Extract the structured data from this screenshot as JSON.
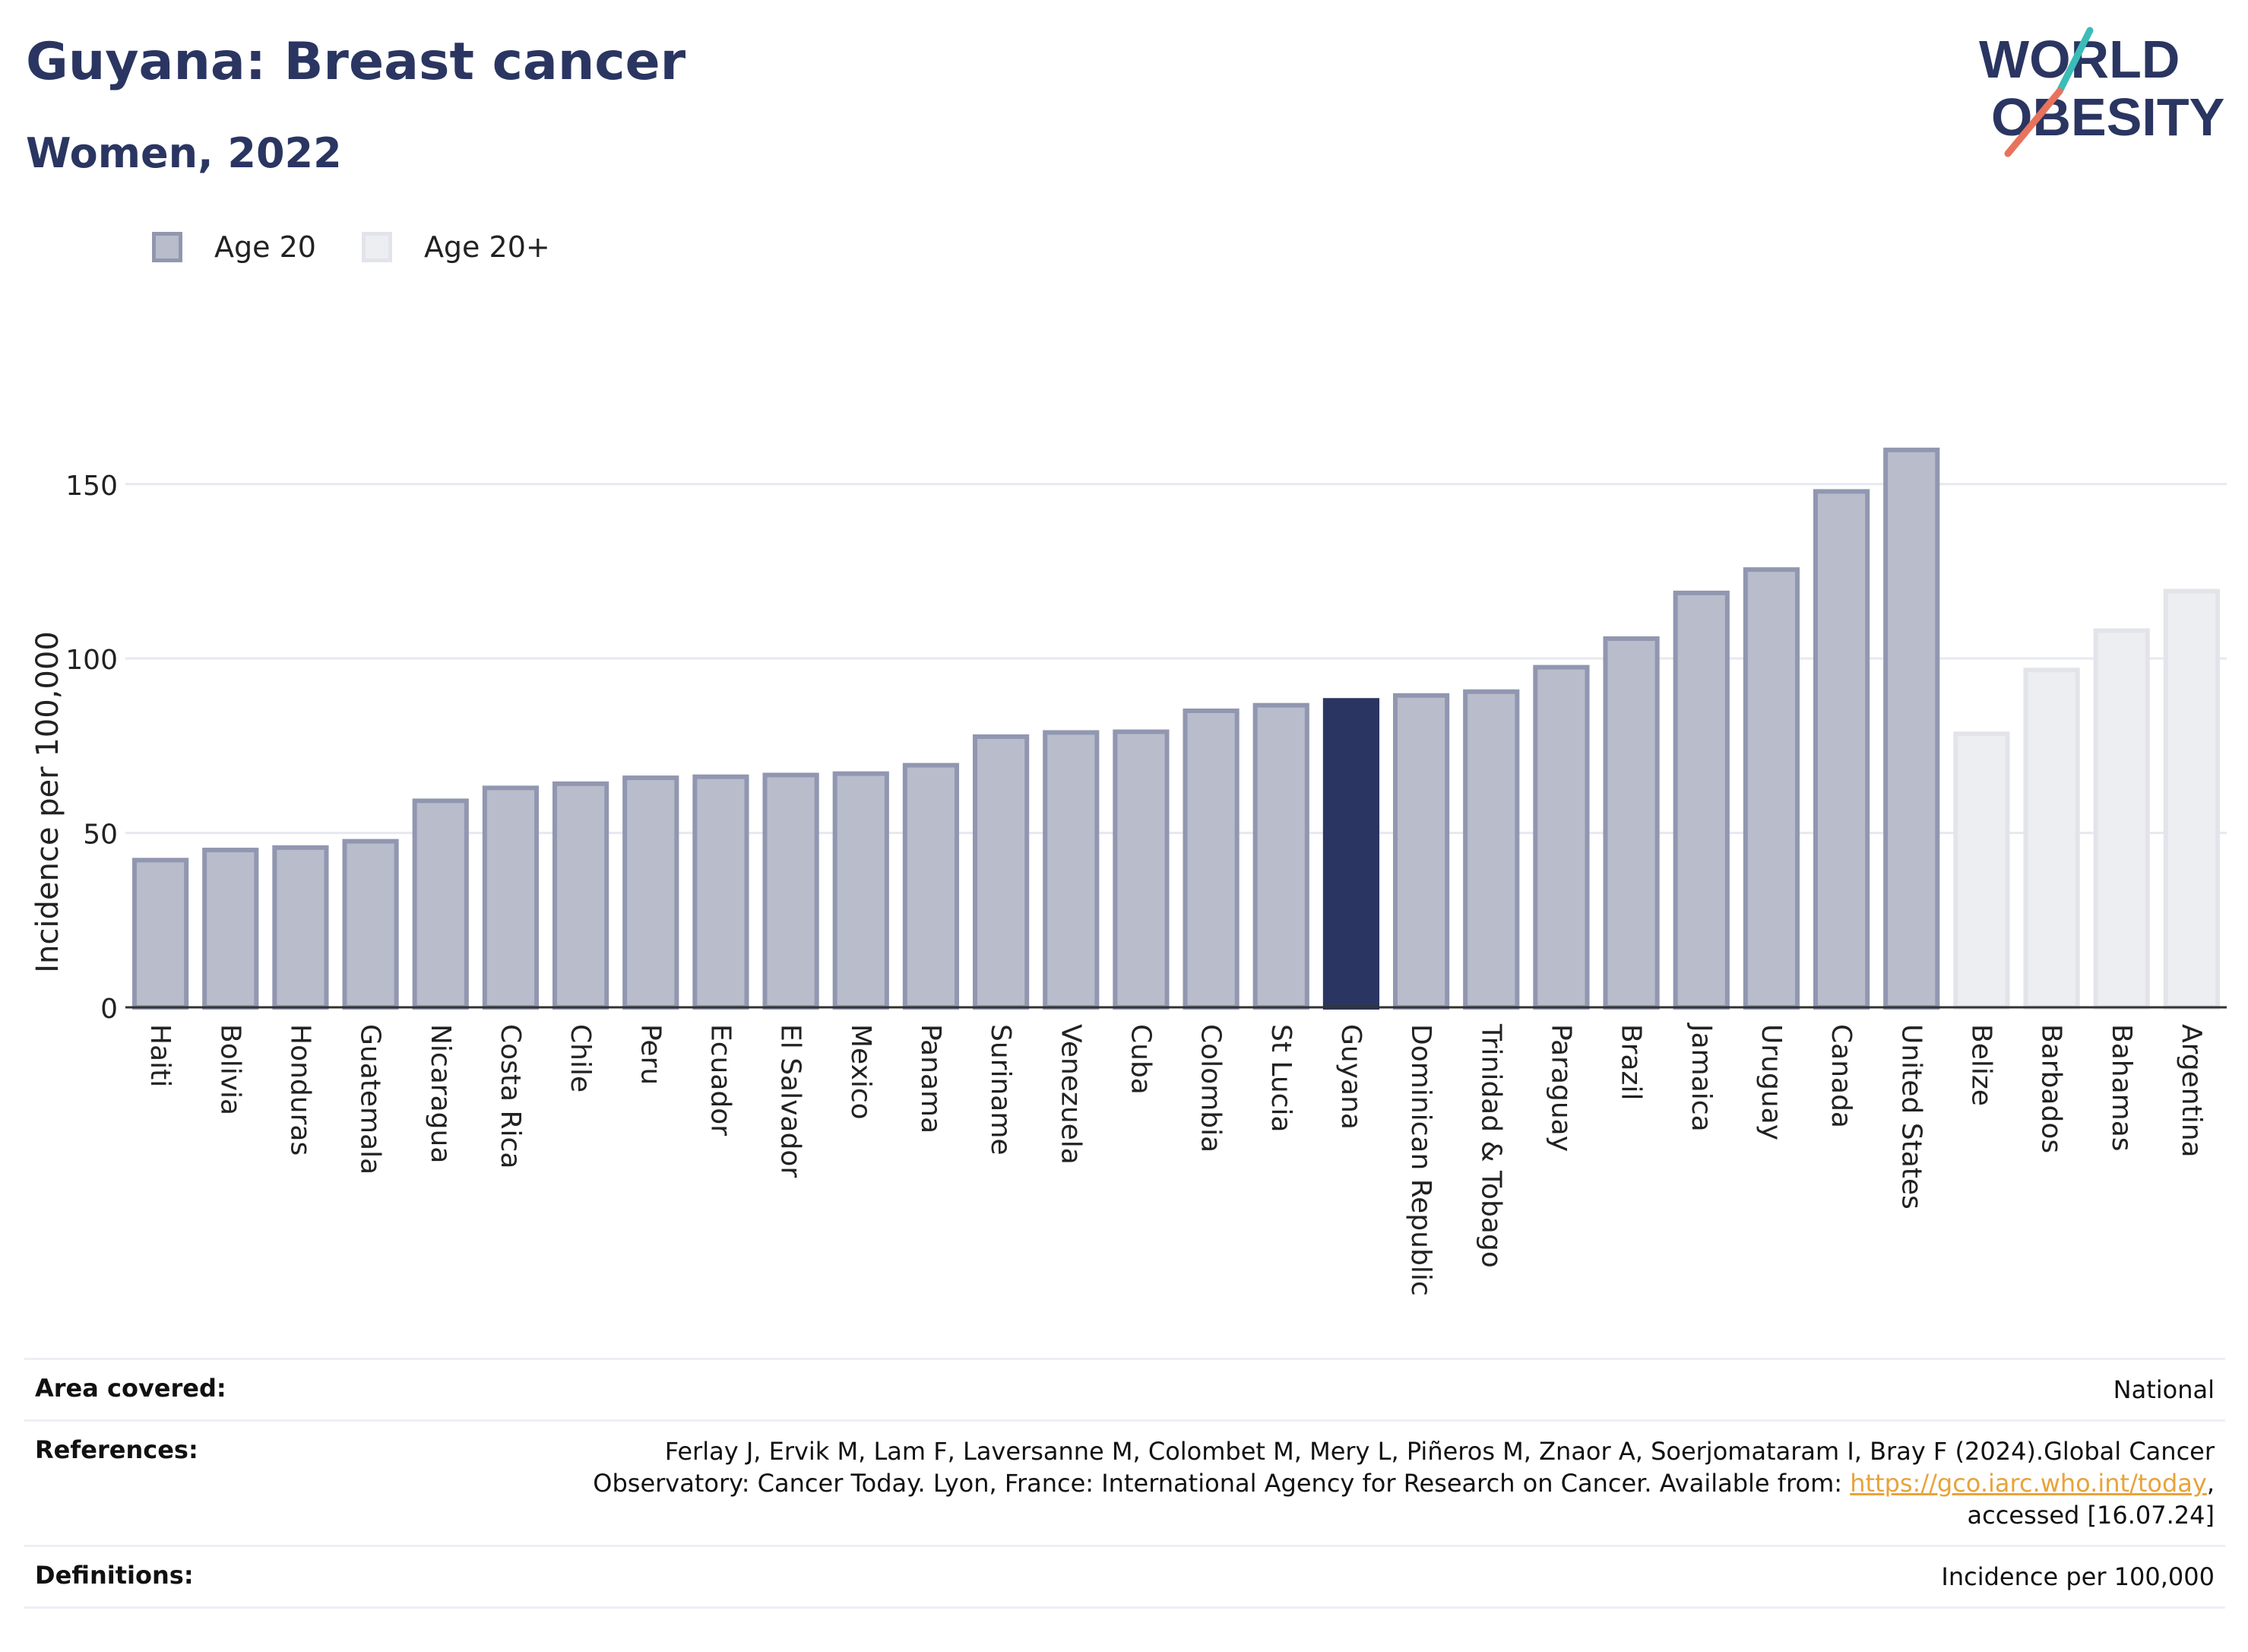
{
  "header": {
    "title": "Guyana: Breast cancer",
    "subtitle": "Women, 2022"
  },
  "logo": {
    "line1": "WORLD",
    "line2": "OBESITY"
  },
  "legend": [
    {
      "label": "Age 20",
      "color": "#b9bccb"
    },
    {
      "label": "Age 20+",
      "color": "#edeef2"
    }
  ],
  "chart_data": {
    "type": "bar",
    "ylabel": "Incidence per 100,000",
    "xlabel": "",
    "ylim": [
      0,
      170
    ],
    "yticks": [
      0,
      50,
      100,
      150
    ],
    "grid": true,
    "highlight": "Guyana",
    "colors": {
      "age20_fill": "#b9bccb",
      "age20_stroke": "#9197b0",
      "age20plus_fill": "#edeef2",
      "age20plus_stroke": "#e3e4ea",
      "highlight": "#2a3561"
    },
    "categories": [
      "Haiti",
      "Bolivia",
      "Honduras",
      "Guatemala",
      "Nicaragua",
      "Costa Rica",
      "Chile",
      "Peru",
      "Ecuador",
      "El Salvador",
      "Mexico",
      "Panama",
      "Suriname",
      "Venezuela",
      "Cuba",
      "Colombia",
      "St Lucia",
      "Guyana",
      "Dominican Republic",
      "Trinidad & Tobago",
      "Paraguay",
      "Brazil",
      "Jamaica",
      "Uruguay",
      "Canada",
      "United States",
      "Belize",
      "Barbados",
      "Bahamas",
      "Argentina"
    ],
    "values": [
      42.2,
      45.1,
      45.8,
      47.6,
      59.2,
      62.9,
      64.1,
      65.8,
      66.1,
      66.6,
      67.0,
      69.4,
      77.6,
      78.8,
      79.0,
      85.0,
      86.6,
      88.0,
      89.4,
      90.5,
      97.5,
      105.7,
      118.8,
      125.5,
      147.9,
      159.8,
      78.4,
      96.7,
      108.0,
      119.3
    ],
    "series_group": [
      "Age 20",
      "Age 20",
      "Age 20",
      "Age 20",
      "Age 20",
      "Age 20",
      "Age 20",
      "Age 20",
      "Age 20",
      "Age 20",
      "Age 20",
      "Age 20",
      "Age 20",
      "Age 20",
      "Age 20",
      "Age 20",
      "Age 20",
      "Age 20",
      "Age 20",
      "Age 20",
      "Age 20",
      "Age 20",
      "Age 20",
      "Age 20",
      "Age 20",
      "Age 20",
      "Age 20+",
      "Age 20+",
      "Age 20+",
      "Age 20+"
    ]
  },
  "info_table": {
    "area_label": "Area covered:",
    "area_value": "National",
    "references_label": "References:",
    "references_text1": "Ferlay J, Ervik M, Lam F, Laversanne M, Colombet M, Mery L, Piñeros M, Znaor A, Soerjomataram I, Bray F (2024).Global Cancer",
    "references_text2": "Observatory: Cancer Today. Lyon, France: International Agency for Research on Cancer. Available from: ",
    "references_link": "https://gco.iarc.who.int/today",
    "references_text3": ",",
    "references_text4": "accessed [16.07.24]",
    "definitions_label": "Definitions:",
    "definitions_value": "Incidence per 100,000"
  }
}
